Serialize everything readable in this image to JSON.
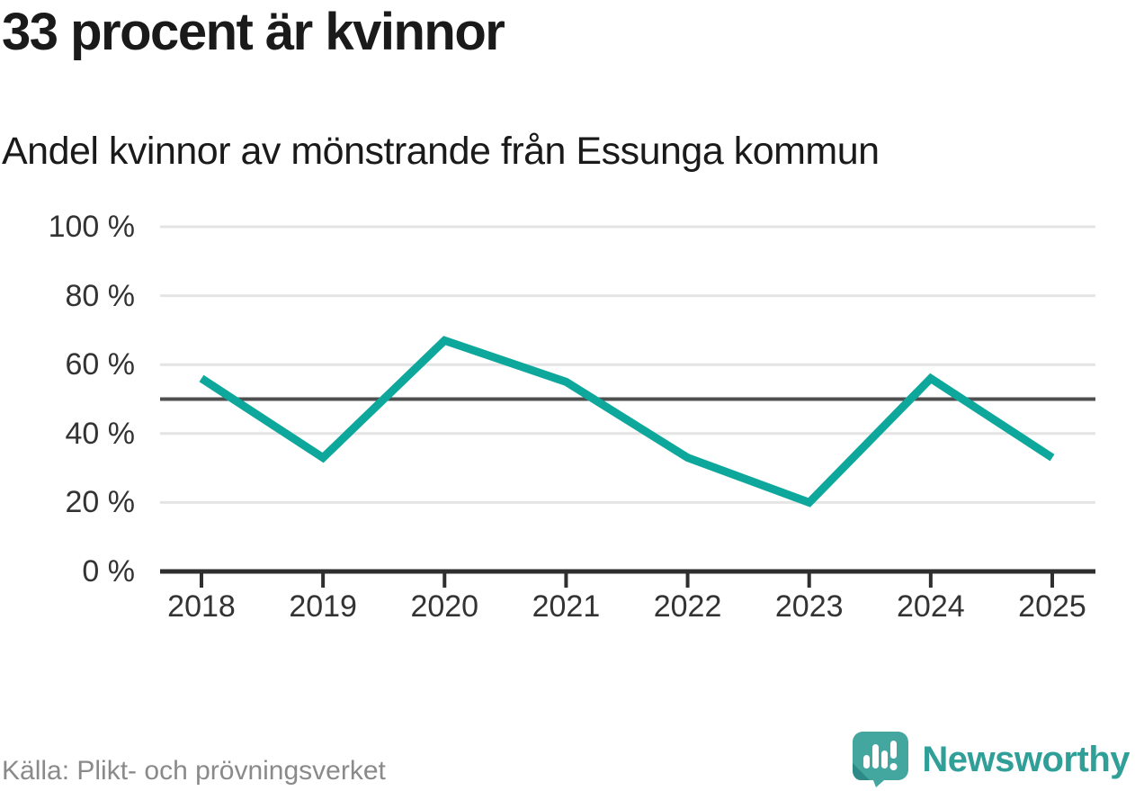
{
  "header": {
    "title": "33 procent är kvinnor",
    "subtitle": "Andel kvinnor av mönstrande från Essunga kommun"
  },
  "footer": {
    "source": "Källa: Plikt- och prövningsverket",
    "logo_text": "Newsworthy",
    "logo_icon": "speech-bubble-bar-chart-exclamation"
  },
  "colors": {
    "line": "#0da79b",
    "reference_line": "#4f4f4f",
    "gridline": "#e4e4e4",
    "axis": "#2f2f2f",
    "title_text": "#1a1a1a",
    "axis_text": "#333333",
    "source_text": "#8a8a8a",
    "logo_teal": "#43a7a0",
    "logo_teal_dark": "#2d8a86",
    "logo_text_color": "#2f9f98"
  },
  "chart_data": {
    "type": "line",
    "title": "33 procent är kvinnor",
    "subtitle": "Andel kvinnor av mönstrande från Essunga kommun",
    "x": [
      "2018",
      "2019",
      "2020",
      "2021",
      "2022",
      "2023",
      "2024",
      "2025"
    ],
    "series": [
      {
        "name": "Andel kvinnor av mönstrande",
        "values": [
          56,
          33,
          67,
          55,
          33,
          20,
          56,
          33
        ]
      }
    ],
    "unit": "%",
    "xlabel": "",
    "ylabel": "",
    "ylim": [
      0,
      100
    ],
    "yticks": [
      0,
      20,
      40,
      60,
      80,
      100
    ],
    "ytick_labels": [
      "0 %",
      "20 %",
      "40 %",
      "60 %",
      "80 %",
      "100 %"
    ],
    "reference_line": 50,
    "grid": true,
    "legend": false
  }
}
